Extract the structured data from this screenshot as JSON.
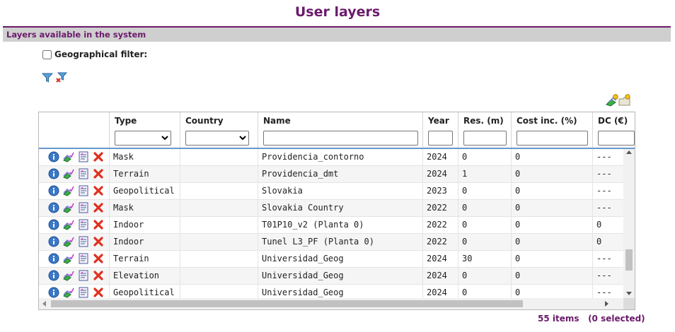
{
  "page_title": "User layers",
  "section": {
    "title": "Layers available in the system"
  },
  "geo_filter": {
    "label": "Geographical filter:",
    "checked": false
  },
  "toolbar": {
    "filter_icons": [
      "funnel-icon",
      "funnel-remove-icon"
    ],
    "right_icons": [
      "new-layer-icon",
      "new-folder-icon"
    ]
  },
  "grid": {
    "columns": [
      "Type",
      "Country",
      "Name",
      "Year",
      "Res. (m)",
      "Cost inc. (%)",
      "DC (€)"
    ],
    "filters": {
      "type": "",
      "country": "",
      "name": "",
      "year": "",
      "res": "",
      "cost": "",
      "dc": ""
    },
    "rows": [
      {
        "type": "Mask",
        "country": "",
        "name": "Providencia_contorno",
        "year": "2024",
        "res": "0",
        "cost": "0",
        "dc": "---",
        "indoor": false
      },
      {
        "type": "Terrain",
        "country": "",
        "name": "Providencia_dmt",
        "year": "2024",
        "res": "1",
        "cost": "0",
        "dc": "---",
        "indoor": false
      },
      {
        "type": "Geopolitical",
        "country": "",
        "name": "Slovakia",
        "year": "2023",
        "res": "0",
        "cost": "0",
        "dc": "---",
        "indoor": false
      },
      {
        "type": "Mask",
        "country": "",
        "name": "Slovakia Country",
        "year": "2022",
        "res": "0",
        "cost": "0",
        "dc": "---",
        "indoor": false
      },
      {
        "type": "Indoor",
        "country": "",
        "name": "T01P10_v2 (Planta 0)",
        "year": "2022",
        "res": "0",
        "cost": "0",
        "dc": "0",
        "indoor": true
      },
      {
        "type": "Indoor",
        "country": "",
        "name": "Tunel L3_PF (Planta 0)",
        "year": "2022",
        "res": "0",
        "cost": "0",
        "dc": "0",
        "indoor": true
      },
      {
        "type": "Terrain",
        "country": "",
        "name": "Universidad_Geog",
        "year": "2024",
        "res": "30",
        "cost": "0",
        "dc": "---",
        "indoor": false
      },
      {
        "type": "Elevation",
        "country": "",
        "name": "Universidad_Geog",
        "year": "2024",
        "res": "0",
        "cost": "0",
        "dc": "---",
        "indoor": false
      },
      {
        "type": "Geopolitical",
        "country": "",
        "name": "Universidad_Geog",
        "year": "2024",
        "res": "0",
        "cost": "0",
        "dc": "---",
        "indoor": false
      }
    ],
    "row_actions": [
      "info-icon",
      "edit-layer-icon",
      "delete-icon"
    ],
    "indoor_extra_action": "floor-plan-icon"
  },
  "footer": {
    "items": "55 items",
    "selected": "(0 selected)"
  },
  "colors": {
    "accent": "#6b1a6b",
    "header_underline": "#6699cc",
    "section_bar": "#cfcfcf"
  }
}
